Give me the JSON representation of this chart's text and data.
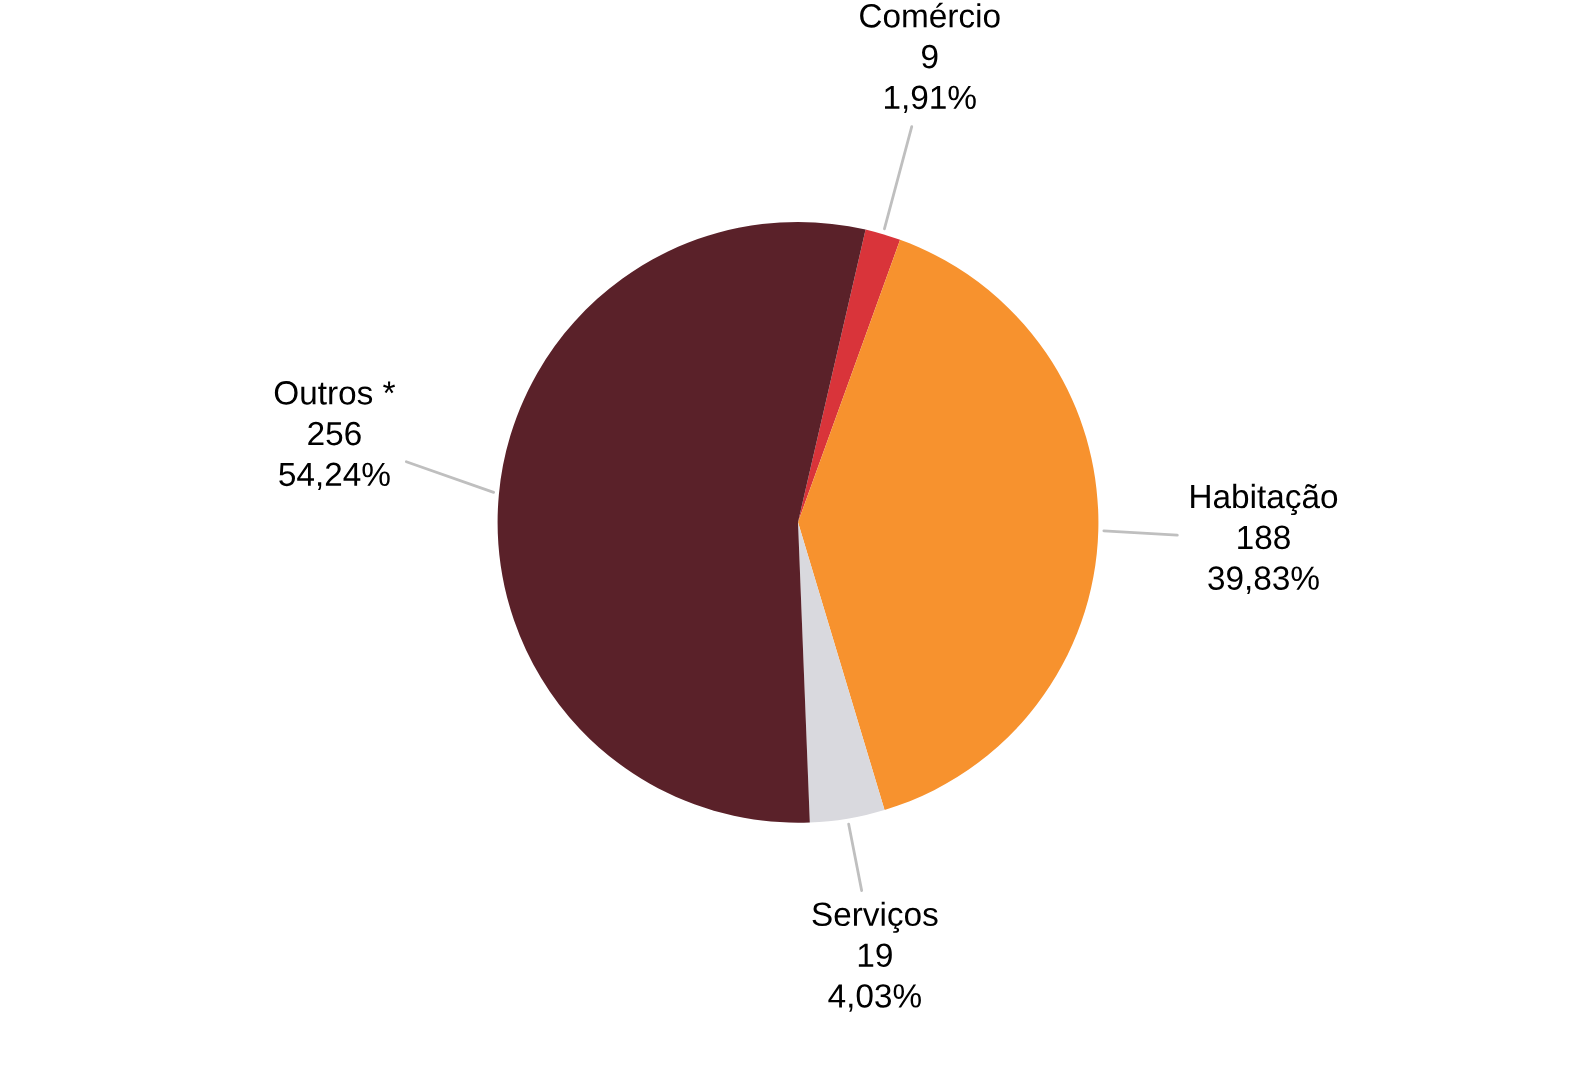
{
  "chart_data": {
    "type": "pie",
    "categories": [
      "Comércio",
      "Habitação",
      "Serviços",
      "Outros *"
    ],
    "values": [
      9,
      188,
      19,
      256
    ],
    "value_labels": [
      "9\n1,91%",
      "188\n39,83%",
      "19\n4,03%",
      "256\n54,24%"
    ],
    "colors": [
      "#d9343a",
      "#f7922e",
      "#d9d9de",
      "#5a2129"
    ],
    "legend": false
  }
}
